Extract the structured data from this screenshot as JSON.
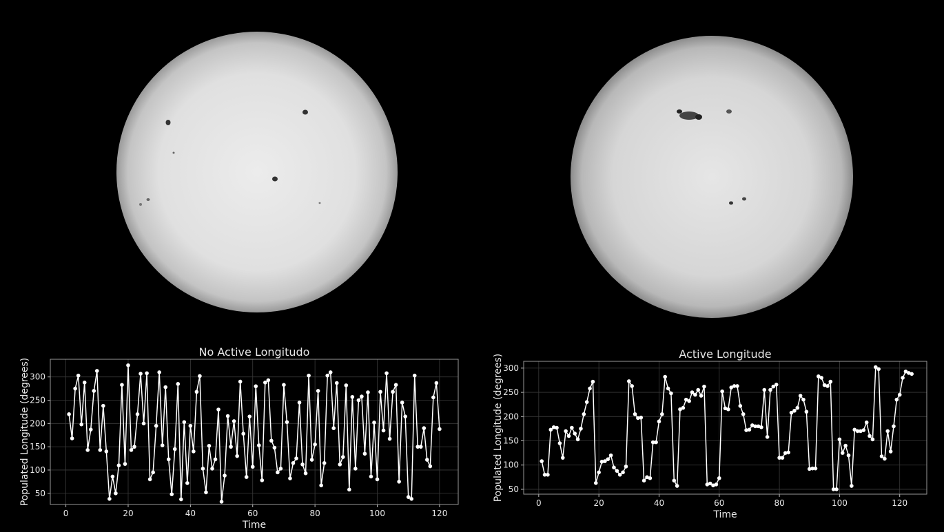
{
  "chart_data": [
    {
      "type": "line",
      "title": "No Active Longitudo",
      "x_label": "Time",
      "y_label": "Populated Longitude (degrees)",
      "color": "#ffffff",
      "grid": true,
      "xlim": [
        -5,
        126
      ],
      "xticks": [
        0,
        20,
        40,
        60,
        80,
        100,
        120
      ],
      "ylim": [
        26,
        338
      ],
      "yticks": [
        50,
        100,
        150,
        200,
        250,
        300
      ],
      "x": [
        1,
        2,
        3,
        4,
        5,
        6,
        7,
        8,
        9,
        10,
        11,
        12,
        13,
        14,
        15,
        16,
        17,
        18,
        19,
        20,
        21,
        22,
        23,
        24,
        25,
        26,
        27,
        28,
        29,
        30,
        31,
        32,
        33,
        34,
        35,
        36,
        37,
        38,
        39,
        40,
        41,
        42,
        43,
        44,
        45,
        46,
        47,
        48,
        49,
        50,
        51,
        52,
        53,
        54,
        55,
        56,
        57,
        58,
        59,
        60,
        61,
        62,
        63,
        64,
        65,
        66,
        67,
        68,
        69,
        70,
        71,
        72,
        73,
        74,
        75,
        76,
        77,
        78,
        79,
        80,
        81,
        82,
        83,
        84,
        85,
        86,
        87,
        88,
        89,
        90,
        91,
        92,
        93,
        94,
        95,
        96,
        97,
        98,
        99,
        100,
        101,
        102,
        103,
        104,
        105,
        106,
        107,
        108,
        109,
        110,
        111,
        112,
        113,
        114,
        115,
        116,
        117,
        118,
        119,
        120
      ],
      "values": [
        220,
        168,
        275,
        303,
        198,
        288,
        143,
        187,
        270,
        313,
        143,
        238,
        140,
        38,
        86,
        50,
        110,
        283,
        113,
        325,
        143,
        150,
        220,
        307,
        200,
        308,
        80,
        95,
        195,
        310,
        153,
        278,
        123,
        48,
        145,
        285,
        37,
        203,
        72,
        195,
        140,
        268,
        302,
        103,
        52,
        152,
        103,
        123,
        230,
        32,
        88,
        216,
        150,
        205,
        130,
        290,
        178,
        85,
        215,
        107,
        280,
        153,
        78,
        288,
        293,
        163,
        148,
        95,
        103,
        283,
        203,
        82,
        115,
        125,
        245,
        112,
        93,
        303,
        122,
        155,
        270,
        67,
        115,
        303,
        310,
        190,
        287,
        112,
        128,
        282,
        58,
        257,
        103,
        250,
        258,
        135,
        267,
        86,
        202,
        80,
        268,
        185,
        308,
        167,
        268,
        283,
        75,
        245,
        215,
        42,
        38,
        303,
        150,
        150,
        190,
        122,
        108,
        256,
        287,
        188
      ]
    },
    {
      "type": "line",
      "title": "Active Longitude",
      "x_label": "Time",
      "y_label": "Populated Longitude (degrees)",
      "color": "#ffffff",
      "grid": true,
      "xlim": [
        -5,
        129
      ],
      "xticks": [
        0,
        20,
        40,
        60,
        80,
        100,
        120
      ],
      "ylim": [
        40,
        314
      ],
      "yticks": [
        50,
        100,
        150,
        200,
        250,
        300
      ],
      "x": [
        1,
        2,
        3,
        4,
        5,
        6,
        7,
        8,
        9,
        10,
        11,
        12,
        13,
        14,
        15,
        16,
        17,
        18,
        19,
        20,
        21,
        22,
        23,
        24,
        25,
        26,
        27,
        28,
        29,
        30,
        31,
        32,
        33,
        34,
        35,
        36,
        37,
        38,
        39,
        40,
        41,
        42,
        43,
        44,
        45,
        46,
        47,
        48,
        49,
        50,
        51,
        52,
        53,
        54,
        55,
        56,
        57,
        58,
        59,
        60,
        61,
        62,
        63,
        64,
        65,
        66,
        67,
        68,
        69,
        70,
        71,
        72,
        73,
        74,
        75,
        76,
        77,
        78,
        79,
        80,
        81,
        82,
        83,
        84,
        85,
        86,
        87,
        88,
        89,
        90,
        91,
        92,
        93,
        94,
        95,
        96,
        97,
        98,
        99,
        100,
        101,
        102,
        103,
        104,
        105,
        106,
        107,
        108,
        109,
        110,
        111,
        112,
        113,
        114,
        115,
        116,
        117,
        118,
        119,
        120,
        121,
        122,
        123,
        124
      ],
      "values": [
        108,
        80,
        80,
        173,
        178,
        177,
        145,
        115,
        170,
        160,
        177,
        165,
        153,
        175,
        205,
        230,
        258,
        272,
        63,
        85,
        107,
        108,
        112,
        120,
        95,
        88,
        80,
        85,
        97,
        273,
        263,
        205,
        197,
        198,
        68,
        75,
        73,
        147,
        147,
        190,
        205,
        282,
        258,
        248,
        68,
        57,
        215,
        218,
        235,
        232,
        250,
        245,
        255,
        243,
        262,
        60,
        62,
        58,
        60,
        73,
        252,
        217,
        215,
        260,
        263,
        263,
        222,
        205,
        172,
        173,
        182,
        180,
        180,
        178,
        255,
        158,
        255,
        262,
        266,
        115,
        115,
        125,
        126,
        208,
        212,
        218,
        243,
        235,
        210,
        92,
        93,
        93,
        283,
        280,
        265,
        263,
        272,
        50,
        50,
        153,
        125,
        140,
        120,
        57,
        173,
        170,
        170,
        172,
        188,
        160,
        153,
        302,
        298,
        118,
        113,
        170,
        128,
        180,
        235,
        245,
        280,
        293,
        290,
        288
      ]
    }
  ]
}
